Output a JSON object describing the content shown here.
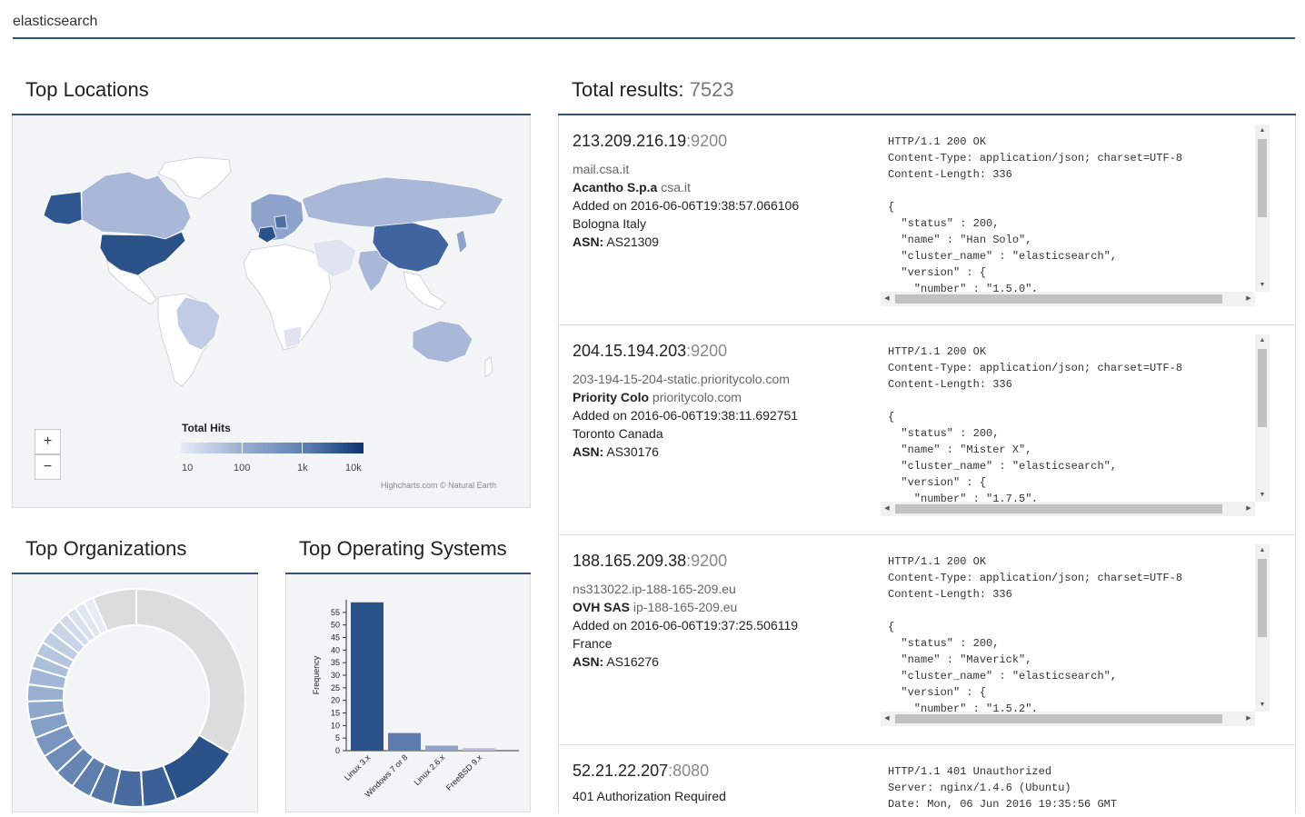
{
  "search": {
    "value": "elasticsearch"
  },
  "locations": {
    "title": "Top Locations",
    "zoom_in": "+",
    "zoom_out": "−",
    "legend_title": "Total Hits",
    "legend_labels": [
      "10",
      "100",
      "1k",
      "10k"
    ],
    "credits": "Highcharts.com © Natural Earth",
    "colors": {
      "low": "#e6ebf8",
      "high": "#0d3571"
    }
  },
  "organizations": {
    "title": "Top Organizations"
  },
  "os": {
    "title": "Top Operating Systems",
    "chart_data": {
      "type": "bar",
      "categories": [
        "Linux 3.x",
        "Windows 7 or 8",
        "Linux 2.6.x",
        "FreeBSD 9.x"
      ],
      "values": [
        59,
        7,
        2,
        1
      ],
      "ylabel": "Frequency",
      "yticks": [
        "0",
        "5",
        "10",
        "15",
        "20",
        "25",
        "30",
        "35",
        "40",
        "45",
        "50",
        "55"
      ],
      "ylim": [
        0,
        60
      ],
      "color": "#2b5189"
    }
  },
  "results": {
    "title": "Total results:",
    "count": "7523",
    "items": [
      {
        "ip": "213.209.216.19",
        "port": ":9200",
        "hostname": "mail.csa.it",
        "org": "Acantho S.p.a",
        "domain": "csa.it",
        "added": "Added on 2016-06-06T19:38:57.066106",
        "location": "Bologna Italy",
        "asn_label": "ASN:",
        "asn": "AS21309",
        "banner": "HTTP/1.1 200 OK\nContent-Type: application/json; charset=UTF-8\nContent-Length: 336\n\n{\n  \"status\" : 200,\n  \"name\" : \"Han Solo\",\n  \"cluster_name\" : \"elasticsearch\",\n  \"version\" : {\n    \"number\" : \"1.5.0\","
      },
      {
        "ip": "204.15.194.203",
        "port": ":9200",
        "hostname": "203-194-15-204-static.prioritycolo.com",
        "org": "Priority Colo",
        "domain": "prioritycolo.com",
        "added": "Added on 2016-06-06T19:38:11.692751",
        "location": "Toronto Canada",
        "asn_label": "ASN:",
        "asn": "AS30176",
        "banner": "HTTP/1.1 200 OK\nContent-Type: application/json; charset=UTF-8\nContent-Length: 336\n\n{\n  \"status\" : 200,\n  \"name\" : \"Mister X\",\n  \"cluster_name\" : \"elasticsearch\",\n  \"version\" : {\n    \"number\" : \"1.7.5\","
      },
      {
        "ip": "188.165.209.38",
        "port": ":9200",
        "hostname": "ns313022.ip-188-165-209.eu",
        "org": "OVH SAS",
        "domain": "ip-188-165-209.eu",
        "added": "Added on 2016-06-06T19:37:25.506119",
        "location": "France",
        "asn_label": "ASN:",
        "asn": "AS16276",
        "banner": "HTTP/1.1 200 OK\nContent-Type: application/json; charset=UTF-8\nContent-Length: 336\n\n{\n  \"status\" : 200,\n  \"name\" : \"Maverick\",\n  \"cluster_name\" : \"elasticsearch\",\n  \"version\" : {\n    \"number\" : \"1.5.2\","
      },
      {
        "ip": "52.21.22.207",
        "port": ":8080",
        "title": "401 Authorization Required",
        "banner": "HTTP/1.1 401 Unauthorized\nServer: nginx/1.4.6 (Ubuntu)\nDate: Mon, 06 Jun 2016 19:35:56 GMT"
      }
    ]
  }
}
